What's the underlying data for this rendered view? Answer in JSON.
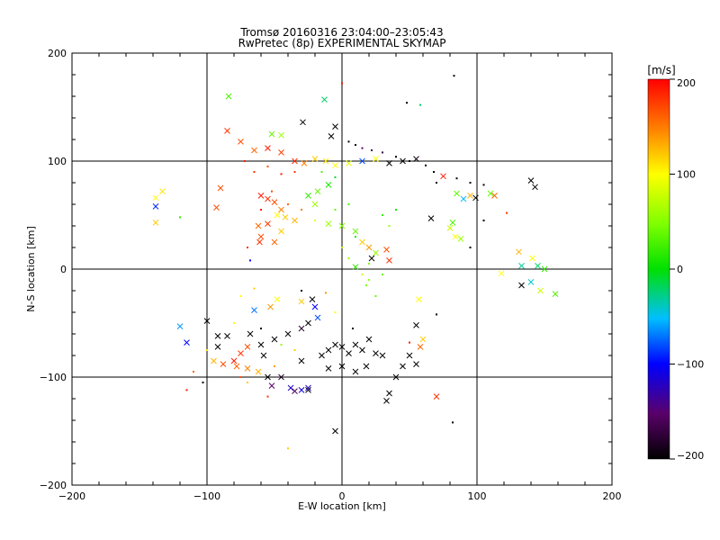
{
  "chart_data": {
    "type": "scatter",
    "title": "Tromsø 20160316 23:04:00–23:05:43",
    "subtitle": "RwPretec (8p) EXPERIMENTAL SKYMAP",
    "xlabel": "E-W location [km]",
    "ylabel": "N-S location [km]",
    "xlim": [
      -200,
      200
    ],
    "ylim": [
      -200,
      200
    ],
    "xticks": [
      -200,
      -100,
      0,
      100,
      200
    ],
    "yticks": [
      -200,
      -100,
      0,
      100,
      200
    ],
    "xtick_labels": [
      "−200",
      "−100",
      "0",
      "100",
      "200"
    ],
    "ytick_labels": [
      "−200",
      "−100",
      "0",
      "100",
      "200"
    ],
    "grid": "major lines at ±100 and 0",
    "colorbar": {
      "title": "[m/s]",
      "range": [
        -200,
        200
      ],
      "ticks": [
        -200,
        -100,
        0,
        100,
        200
      ],
      "tick_labels": [
        "−200",
        "−100",
        "0",
        "100",
        "200"
      ],
      "colormap": "rainbow (black–purple–blue–cyan–green–yellow–red)"
    },
    "marker_types": [
      "dot",
      "cross"
    ],
    "points": [
      {
        "x": -85,
        "y": 128,
        "v": 180,
        "m": "x"
      },
      {
        "x": -75,
        "y": 118,
        "v": 170,
        "m": "x"
      },
      {
        "x": -65,
        "y": 110,
        "v": 160,
        "m": "x"
      },
      {
        "x": -55,
        "y": 112,
        "v": 190,
        "m": "x"
      },
      {
        "x": -45,
        "y": 108,
        "v": 175,
        "m": "x"
      },
      {
        "x": -35,
        "y": 100,
        "v": 180,
        "m": "x"
      },
      {
        "x": -28,
        "y": 98,
        "v": 150,
        "m": "x"
      },
      {
        "x": -20,
        "y": 102,
        "v": 120,
        "m": "x"
      },
      {
        "x": -12,
        "y": 100,
        "v": 110,
        "m": "x"
      },
      {
        "x": -5,
        "y": 96,
        "v": 100,
        "m": "x"
      },
      {
        "x": 5,
        "y": 98,
        "v": 90,
        "m": "x"
      },
      {
        "x": 15,
        "y": 100,
        "v": -80,
        "m": "x"
      },
      {
        "x": 25,
        "y": 102,
        "v": 100,
        "m": "x"
      },
      {
        "x": 35,
        "y": 98,
        "v": -200,
        "m": "x"
      },
      {
        "x": 45,
        "y": 100,
        "v": -200,
        "m": "x"
      },
      {
        "x": 55,
        "y": 102,
        "v": -190,
        "m": "x"
      },
      {
        "x": 62,
        "y": 96,
        "v": -200,
        "m": "."
      },
      {
        "x": -84,
        "y": 160,
        "v": 30,
        "m": "x"
      },
      {
        "x": -13,
        "y": 157,
        "v": -20,
        "m": "x"
      },
      {
        "x": -29,
        "y": 136,
        "v": -200,
        "m": "x"
      },
      {
        "x": -5,
        "y": 132,
        "v": -200,
        "m": "x"
      },
      {
        "x": -52,
        "y": 125,
        "v": 40,
        "m": "x"
      },
      {
        "x": -45,
        "y": 124,
        "v": 60,
        "m": "x"
      },
      {
        "x": -8,
        "y": 123,
        "v": -200,
        "m": "x"
      },
      {
        "x": 0,
        "y": 172,
        "v": 190,
        "m": "."
      },
      {
        "x": 48,
        "y": 154,
        "v": -200,
        "m": "."
      },
      {
        "x": 58,
        "y": 152,
        "v": -20,
        "m": "."
      },
      {
        "x": 83,
        "y": 179,
        "v": -200,
        "m": "."
      },
      {
        "x": 5,
        "y": 118,
        "v": -200,
        "m": "."
      },
      {
        "x": 10,
        "y": 115,
        "v": -200,
        "m": "."
      },
      {
        "x": 15,
        "y": 112,
        "v": -150,
        "m": "."
      },
      {
        "x": 22,
        "y": 110,
        "v": -160,
        "m": "."
      },
      {
        "x": 30,
        "y": 108,
        "v": -170,
        "m": "."
      },
      {
        "x": 40,
        "y": 104,
        "v": -200,
        "m": "."
      },
      {
        "x": 50,
        "y": 100,
        "v": -200,
        "m": "."
      },
      {
        "x": 68,
        "y": 90,
        "v": -200,
        "m": "."
      },
      {
        "x": 75,
        "y": 86,
        "v": 190,
        "m": "x"
      },
      {
        "x": 85,
        "y": 84,
        "v": -200,
        "m": "."
      },
      {
        "x": 95,
        "y": 80,
        "v": -200,
        "m": "."
      },
      {
        "x": 105,
        "y": 78,
        "v": -200,
        "m": "."
      },
      {
        "x": 110,
        "y": 70,
        "v": 40,
        "m": "x"
      },
      {
        "x": 113,
        "y": 68,
        "v": 160,
        "m": "x"
      },
      {
        "x": 95,
        "y": 68,
        "v": 130,
        "m": "x"
      },
      {
        "x": 99,
        "y": 66,
        "v": -200,
        "m": "x"
      },
      {
        "x": 140,
        "y": 82,
        "v": -200,
        "m": "x"
      },
      {
        "x": 143,
        "y": 76,
        "v": -200,
        "m": "x"
      },
      {
        "x": 90,
        "y": 65,
        "v": -50,
        "m": "x"
      },
      {
        "x": 85,
        "y": 70,
        "v": 40,
        "m": "x"
      },
      {
        "x": 66,
        "y": 47,
        "v": -200,
        "m": "x"
      },
      {
        "x": 80,
        "y": 38,
        "v": 80,
        "m": "x"
      },
      {
        "x": 82,
        "y": 43,
        "v": 30,
        "m": "x"
      },
      {
        "x": 84,
        "y": 30,
        "v": 100,
        "m": "x"
      },
      {
        "x": 88,
        "y": 28,
        "v": 60,
        "m": "x"
      },
      {
        "x": 131,
        "y": 16,
        "v": 130,
        "m": "x"
      },
      {
        "x": 141,
        "y": 10,
        "v": 100,
        "m": "x"
      },
      {
        "x": 133,
        "y": 3,
        "v": -30,
        "m": "x"
      },
      {
        "x": 145,
        "y": 3,
        "v": -20,
        "m": "x"
      },
      {
        "x": 150,
        "y": 0,
        "v": 20,
        "m": "x"
      },
      {
        "x": 118,
        "y": -4,
        "v": 100,
        "m": "x"
      },
      {
        "x": 140,
        "y": -12,
        "v": -40,
        "m": "x"
      },
      {
        "x": 133,
        "y": -15,
        "v": -200,
        "m": "x"
      },
      {
        "x": 147,
        "y": -20,
        "v": 80,
        "m": "x"
      },
      {
        "x": 158,
        "y": -23,
        "v": 30,
        "m": "x"
      },
      {
        "x": -138,
        "y": 58,
        "v": -90,
        "m": "x"
      },
      {
        "x": -138,
        "y": 66,
        "v": 100,
        "m": "x"
      },
      {
        "x": -133,
        "y": 72,
        "v": 110,
        "m": "x"
      },
      {
        "x": -138,
        "y": 43,
        "v": 120,
        "m": "x"
      },
      {
        "x": -90,
        "y": 75,
        "v": 170,
        "m": "x"
      },
      {
        "x": -93,
        "y": 57,
        "v": 170,
        "m": "x"
      },
      {
        "x": -60,
        "y": 68,
        "v": 190,
        "m": "x"
      },
      {
        "x": -55,
        "y": 65,
        "v": 180,
        "m": "x"
      },
      {
        "x": -50,
        "y": 62,
        "v": 170,
        "m": "x"
      },
      {
        "x": -45,
        "y": 55,
        "v": 150,
        "m": "x"
      },
      {
        "x": -48,
        "y": 50,
        "v": 100,
        "m": "x"
      },
      {
        "x": -42,
        "y": 48,
        "v": 120,
        "m": "x"
      },
      {
        "x": -35,
        "y": 45,
        "v": 130,
        "m": "x"
      },
      {
        "x": -25,
        "y": 68,
        "v": 20,
        "m": "x"
      },
      {
        "x": -18,
        "y": 72,
        "v": 40,
        "m": "x"
      },
      {
        "x": -10,
        "y": 78,
        "v": 10,
        "m": "x"
      },
      {
        "x": -20,
        "y": 60,
        "v": 60,
        "m": "x"
      },
      {
        "x": -62,
        "y": 40,
        "v": 160,
        "m": "x"
      },
      {
        "x": -55,
        "y": 42,
        "v": 180,
        "m": "x"
      },
      {
        "x": -61,
        "y": 25,
        "v": 180,
        "m": "x"
      },
      {
        "x": -60,
        "y": 30,
        "v": 170,
        "m": "x"
      },
      {
        "x": -50,
        "y": 25,
        "v": 160,
        "m": "x"
      },
      {
        "x": -45,
        "y": 35,
        "v": 120,
        "m": "x"
      },
      {
        "x": -10,
        "y": 42,
        "v": 60,
        "m": "x"
      },
      {
        "x": 0,
        "y": 40,
        "v": 50,
        "m": "x"
      },
      {
        "x": 10,
        "y": 35,
        "v": 40,
        "m": "x"
      },
      {
        "x": 15,
        "y": 25,
        "v": 120,
        "m": "x"
      },
      {
        "x": 20,
        "y": 20,
        "v": 140,
        "m": "x"
      },
      {
        "x": 25,
        "y": 15,
        "v": 60,
        "m": "x"
      },
      {
        "x": 33,
        "y": 18,
        "v": 170,
        "m": "x"
      },
      {
        "x": 35,
        "y": 8,
        "v": 180,
        "m": "x"
      },
      {
        "x": 22,
        "y": 10,
        "v": -200,
        "m": "x"
      },
      {
        "x": 10,
        "y": 2,
        "v": 20,
        "m": "x"
      },
      {
        "x": 20,
        "y": -10,
        "v": 60,
        "m": "."
      },
      {
        "x": 25,
        "y": -25,
        "v": 40,
        "m": "."
      },
      {
        "x": 57,
        "y": -28,
        "v": 100,
        "m": "x"
      },
      {
        "x": -48,
        "y": -28,
        "v": 100,
        "m": "x"
      },
      {
        "x": -53,
        "y": -35,
        "v": 140,
        "m": "x"
      },
      {
        "x": -30,
        "y": -30,
        "v": 120,
        "m": "x"
      },
      {
        "x": -22,
        "y": -28,
        "v": -200,
        "m": "x"
      },
      {
        "x": -20,
        "y": -35,
        "v": -100,
        "m": "x"
      },
      {
        "x": -18,
        "y": -45,
        "v": -80,
        "m": "x"
      },
      {
        "x": -25,
        "y": -50,
        "v": -200,
        "m": "x"
      },
      {
        "x": -30,
        "y": -55,
        "v": -180,
        "m": "x"
      },
      {
        "x": -40,
        "y": -60,
        "v": -200,
        "m": "x"
      },
      {
        "x": -50,
        "y": -65,
        "v": -200,
        "m": "x"
      },
      {
        "x": -60,
        "y": -70,
        "v": -200,
        "m": "x"
      },
      {
        "x": -70,
        "y": -72,
        "v": 170,
        "m": "x"
      },
      {
        "x": -75,
        "y": -78,
        "v": 180,
        "m": "x"
      },
      {
        "x": -80,
        "y": -85,
        "v": 190,
        "m": "x"
      },
      {
        "x": -88,
        "y": -88,
        "v": 170,
        "m": "x"
      },
      {
        "x": -78,
        "y": -90,
        "v": 160,
        "m": "x"
      },
      {
        "x": -70,
        "y": -92,
        "v": 150,
        "m": "x"
      },
      {
        "x": -58,
        "y": -80,
        "v": -200,
        "m": "x"
      },
      {
        "x": -62,
        "y": -95,
        "v": 130,
        "m": "x"
      },
      {
        "x": -55,
        "y": -100,
        "v": -200,
        "m": "x"
      },
      {
        "x": -52,
        "y": -108,
        "v": -150,
        "m": "x"
      },
      {
        "x": -45,
        "y": -100,
        "v": -180,
        "m": "x"
      },
      {
        "x": -38,
        "y": -110,
        "v": -120,
        "m": "x"
      },
      {
        "x": -35,
        "y": -113,
        "v": -160,
        "m": "x"
      },
      {
        "x": -25,
        "y": -112,
        "v": -200,
        "m": "x"
      },
      {
        "x": -15,
        "y": -80,
        "v": -200,
        "m": "x"
      },
      {
        "x": -10,
        "y": -75,
        "v": -200,
        "m": "x"
      },
      {
        "x": -5,
        "y": -70,
        "v": -200,
        "m": "x"
      },
      {
        "x": 0,
        "y": -72,
        "v": -200,
        "m": "x"
      },
      {
        "x": 5,
        "y": -78,
        "v": -200,
        "m": "x"
      },
      {
        "x": 10,
        "y": -70,
        "v": -200,
        "m": "x"
      },
      {
        "x": 15,
        "y": -75,
        "v": -200,
        "m": "x"
      },
      {
        "x": 20,
        "y": -65,
        "v": -200,
        "m": "x"
      },
      {
        "x": 25,
        "y": -78,
        "v": -200,
        "m": "x"
      },
      {
        "x": 30,
        "y": -80,
        "v": -200,
        "m": "x"
      },
      {
        "x": 18,
        "y": -90,
        "v": -200,
        "m": "x"
      },
      {
        "x": 10,
        "y": -95,
        "v": -200,
        "m": "x"
      },
      {
        "x": 0,
        "y": -90,
        "v": -200,
        "m": "x"
      },
      {
        "x": -10,
        "y": -92,
        "v": -200,
        "m": "x"
      },
      {
        "x": -30,
        "y": -85,
        "v": -200,
        "m": "x"
      },
      {
        "x": 55,
        "y": -52,
        "v": -200,
        "m": "x"
      },
      {
        "x": 50,
        "y": -80,
        "v": -200,
        "m": "x"
      },
      {
        "x": 45,
        "y": -90,
        "v": -200,
        "m": "x"
      },
      {
        "x": 55,
        "y": -88,
        "v": -200,
        "m": "x"
      },
      {
        "x": 60,
        "y": -65,
        "v": 120,
        "m": "x"
      },
      {
        "x": 58,
        "y": -72,
        "v": 160,
        "m": "x"
      },
      {
        "x": 40,
        "y": -100,
        "v": -200,
        "m": "x"
      },
      {
        "x": 35,
        "y": -115,
        "v": -200,
        "m": "x"
      },
      {
        "x": 33,
        "y": -122,
        "v": -200,
        "m": "x"
      },
      {
        "x": 70,
        "y": -118,
        "v": 180,
        "m": "x"
      },
      {
        "x": -5,
        "y": -150,
        "v": -200,
        "m": "x"
      },
      {
        "x": -120,
        "y": -53,
        "v": -60,
        "m": "x"
      },
      {
        "x": -115,
        "y": -68,
        "v": -100,
        "m": "x"
      },
      {
        "x": -100,
        "y": -48,
        "v": -200,
        "m": "x"
      },
      {
        "x": -92,
        "y": -62,
        "v": -200,
        "m": "x"
      },
      {
        "x": -85,
        "y": -62,
        "v": -200,
        "m": "x"
      },
      {
        "x": -92,
        "y": -72,
        "v": -200,
        "m": "x"
      },
      {
        "x": -65,
        "y": -38,
        "v": -70,
        "m": "x"
      },
      {
        "x": -68,
        "y": -60,
        "v": -200,
        "m": "x"
      },
      {
        "x": -95,
        "y": -85,
        "v": 130,
        "m": "x"
      },
      {
        "x": -25,
        "y": -110,
        "v": -120,
        "m": "x"
      },
      {
        "x": -30,
        "y": -112,
        "v": -110,
        "m": "x"
      },
      {
        "x": -75,
        "y": -100,
        "v": 170,
        "m": "."
      },
      {
        "x": -115,
        "y": -112,
        "v": 190,
        "m": "."
      },
      {
        "x": -110,
        "y": -95,
        "v": 160,
        "m": "."
      },
      {
        "x": -103,
        "y": -105,
        "v": -200,
        "m": "."
      },
      {
        "x": -55,
        "y": -118,
        "v": 180,
        "m": "."
      },
      {
        "x": -40,
        "y": -166,
        "v": 120,
        "m": "."
      },
      {
        "x": 82,
        "y": -142,
        "v": -200,
        "m": "."
      },
      {
        "x": 70,
        "y": -42,
        "v": -200,
        "m": "."
      },
      {
        "x": 50,
        "y": -68,
        "v": 190,
        "m": "."
      },
      {
        "x": -120,
        "y": 48,
        "v": 20,
        "m": "."
      },
      {
        "x": -68,
        "y": 8,
        "v": -100,
        "m": "."
      },
      {
        "x": -70,
        "y": 20,
        "v": 180,
        "m": "."
      },
      {
        "x": -75,
        "y": -25,
        "v": 100,
        "m": "."
      },
      {
        "x": -65,
        "y": -18,
        "v": 120,
        "m": "."
      },
      {
        "x": -30,
        "y": -20,
        "v": -200,
        "m": "."
      },
      {
        "x": -12,
        "y": -22,
        "v": 140,
        "m": "."
      },
      {
        "x": -5,
        "y": -40,
        "v": 100,
        "m": "."
      },
      {
        "x": 70,
        "y": 80,
        "v": -200,
        "m": "."
      },
      {
        "x": 105,
        "y": 45,
        "v": -200,
        "m": "."
      },
      {
        "x": 122,
        "y": 52,
        "v": 180,
        "m": "."
      },
      {
        "x": 95,
        "y": 20,
        "v": -200,
        "m": "."
      },
      {
        "x": 30,
        "y": 50,
        "v": 20,
        "m": "."
      },
      {
        "x": 35,
        "y": 40,
        "v": 60,
        "m": "."
      },
      {
        "x": 40,
        "y": 55,
        "v": 10,
        "m": "."
      },
      {
        "x": 5,
        "y": 60,
        "v": 30,
        "m": "."
      },
      {
        "x": -5,
        "y": 55,
        "v": 40,
        "m": "."
      },
      {
        "x": 10,
        "y": 30,
        "v": 10,
        "m": "."
      },
      {
        "x": 20,
        "y": 5,
        "v": 50,
        "m": "."
      },
      {
        "x": -5,
        "y": 85,
        "v": -10,
        "m": "."
      },
      {
        "x": -15,
        "y": 90,
        "v": 30,
        "m": "."
      },
      {
        "x": -35,
        "y": 90,
        "v": 180,
        "m": "."
      },
      {
        "x": -45,
        "y": 88,
        "v": 190,
        "m": "."
      },
      {
        "x": -55,
        "y": 95,
        "v": 170,
        "m": "."
      },
      {
        "x": -65,
        "y": 90,
        "v": 180,
        "m": "."
      },
      {
        "x": -72,
        "y": 100,
        "v": 190,
        "m": "."
      },
      {
        "x": -60,
        "y": 55,
        "v": 190,
        "m": "."
      },
      {
        "x": -52,
        "y": 72,
        "v": 170,
        "m": "."
      },
      {
        "x": -40,
        "y": 60,
        "v": 160,
        "m": "."
      },
      {
        "x": -30,
        "y": 55,
        "v": 150,
        "m": "."
      },
      {
        "x": -20,
        "y": 45,
        "v": 90,
        "m": "."
      },
      {
        "x": 0,
        "y": 20,
        "v": 70,
        "m": "."
      },
      {
        "x": 5,
        "y": 10,
        "v": 60,
        "m": "."
      },
      {
        "x": 15,
        "y": -5,
        "v": 80,
        "m": "."
      },
      {
        "x": 18,
        "y": -15,
        "v": 50,
        "m": "."
      },
      {
        "x": 30,
        "y": -5,
        "v": 40,
        "m": "."
      },
      {
        "x": 8,
        "y": -55,
        "v": -200,
        "m": "."
      },
      {
        "x": -35,
        "y": -75,
        "v": 120,
        "m": "."
      },
      {
        "x": -60,
        "y": -55,
        "v": -200,
        "m": "."
      },
      {
        "x": -80,
        "y": -50,
        "v": 100,
        "m": "."
      },
      {
        "x": -100,
        "y": -75,
        "v": 110,
        "m": "."
      },
      {
        "x": -45,
        "y": -70,
        "v": 60,
        "m": "."
      },
      {
        "x": -70,
        "y": -105,
        "v": 120,
        "m": "."
      },
      {
        "x": -50,
        "y": -90,
        "v": 140,
        "m": "."
      }
    ]
  }
}
